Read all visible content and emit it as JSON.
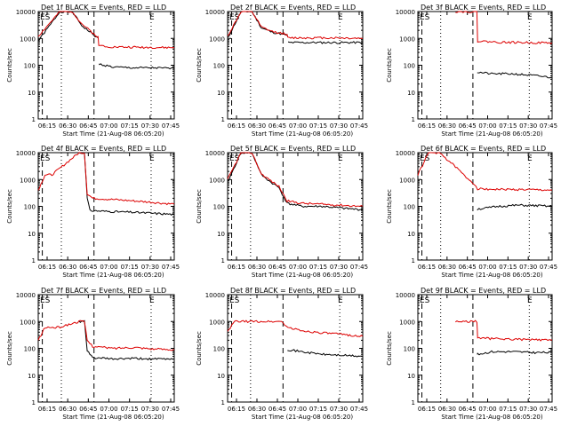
{
  "figure": {
    "xlabel": "Start Time (21-Aug-08 06:05:20)",
    "ylabel": "Counts/sec"
  },
  "chart_data": [
    {
      "type": "line",
      "title": "Det 1f BLACK = Events, RED = LLD",
      "x_ticks": [
        "06:15",
        "06:30",
        "06:45",
        "07:00",
        "07:15",
        "07:30",
        "07:45"
      ],
      "y_ticks": [
        "1",
        "10",
        "100",
        "1000",
        "10000"
      ],
      "ylim": [
        1,
        10000
      ],
      "yscale": "log",
      "markers": [
        "ES",
        "E"
      ],
      "series": [
        {
          "color": "#000000",
          "points": [
            [
              0,
              800
            ],
            [
              0.16,
              10000
            ],
            [
              0.25,
              10000
            ],
            [
              0.32,
              3000
            ],
            [
              0.44,
              1000
            ],
            [
              0.445,
              0
            ],
            [
              0.45,
              110
            ],
            [
              0.55,
              85
            ],
            [
              0.7,
              80
            ],
            [
              0.85,
              80
            ],
            [
              1,
              75
            ]
          ]
        },
        {
          "color": "#dd0000",
          "points": [
            [
              0,
              1200
            ],
            [
              0.16,
              10000
            ],
            [
              0.25,
              10000
            ],
            [
              0.32,
              3500
            ],
            [
              0.44,
              1100
            ],
            [
              0.445,
              550
            ],
            [
              0.55,
              480
            ],
            [
              0.7,
              470
            ],
            [
              0.85,
              460
            ],
            [
              1,
              450
            ]
          ]
        }
      ]
    },
    {
      "type": "line",
      "title": "Det 2f BLACK = Events, RED = LLD",
      "x_ticks": [
        "06:15",
        "06:30",
        "06:45",
        "07:00",
        "07:15",
        "07:30",
        "07:45"
      ],
      "y_ticks": [
        "1",
        "10",
        "100",
        "1000",
        "10000"
      ],
      "ylim": [
        1,
        10000
      ],
      "yscale": "log",
      "markers": [
        "ES",
        "E"
      ],
      "series": [
        {
          "color": "#000000",
          "points": [
            [
              0,
              1000
            ],
            [
              0.1,
              10000
            ],
            [
              0.18,
              10000
            ],
            [
              0.25,
              2500
            ],
            [
              0.33,
              1700
            ],
            [
              0.39,
              1500
            ],
            [
              0.44,
              1300
            ],
            [
              0.445,
              0
            ],
            [
              0.45,
              700
            ],
            [
              0.6,
              700
            ],
            [
              0.8,
              700
            ],
            [
              1,
              700
            ]
          ]
        },
        {
          "color": "#dd0000",
          "points": [
            [
              0,
              1200
            ],
            [
              0.1,
              10000
            ],
            [
              0.18,
              10000
            ],
            [
              0.25,
              2600
            ],
            [
              0.33,
              1800
            ],
            [
              0.39,
              1600
            ],
            [
              0.44,
              1400
            ],
            [
              0.445,
              1050
            ],
            [
              0.6,
              1050
            ],
            [
              0.8,
              1050
            ],
            [
              1,
              1000
            ]
          ]
        }
      ]
    },
    {
      "type": "line",
      "title": "Det 3f BLACK = Events, RED = LLD",
      "x_ticks": [
        "06:15",
        "06:30",
        "06:45",
        "07:00",
        "07:15",
        "07:30",
        "07:45"
      ],
      "y_ticks": [
        "1",
        "10",
        "100",
        "1000",
        "10000"
      ],
      "ylim": [
        1,
        10000
      ],
      "yscale": "log",
      "markers": [
        "ES",
        "E"
      ],
      "series": [
        {
          "color": "#000000",
          "points": [
            [
              0.44,
              0
            ],
            [
              0.445,
              55
            ],
            [
              0.55,
              48
            ],
            [
              0.7,
              48
            ],
            [
              0.85,
              42
            ],
            [
              1,
              35
            ]
          ]
        },
        {
          "color": "#dd0000",
          "points": [
            [
              0.28,
              10000
            ],
            [
              0.44,
              10000
            ],
            [
              0.445,
              800
            ],
            [
              0.6,
              720
            ],
            [
              0.8,
              700
            ],
            [
              1,
              680
            ]
          ]
        }
      ]
    },
    {
      "type": "line",
      "title": "Det 4f BLACK = Events, RED = LLD",
      "x_ticks": [
        "06:15",
        "06:30",
        "06:45",
        "07:00",
        "07:15",
        "07:30",
        "07:45"
      ],
      "y_ticks": [
        "1",
        "10",
        "100",
        "1000",
        "10000"
      ],
      "ylim": [
        1,
        10000
      ],
      "yscale": "log",
      "markers": [
        "ES",
        "E"
      ],
      "series": [
        {
          "color": "#000000",
          "points": [
            [
              0.3,
              10000
            ],
            [
              0.34,
              10000
            ],
            [
              0.36,
              200
            ],
            [
              0.38,
              70
            ],
            [
              0.5,
              65
            ],
            [
              0.7,
              60
            ],
            [
              0.85,
              55
            ],
            [
              1,
              50
            ]
          ]
        },
        {
          "color": "#dd0000",
          "points": [
            [
              0,
              400
            ],
            [
              0.05,
              1500
            ],
            [
              0.1,
              1500
            ],
            [
              0.3,
              10000
            ],
            [
              0.34,
              10000
            ],
            [
              0.36,
              300
            ],
            [
              0.4,
              200
            ],
            [
              0.55,
              180
            ],
            [
              0.7,
              160
            ],
            [
              0.85,
              140
            ],
            [
              1,
              120
            ]
          ]
        }
      ]
    },
    {
      "type": "line",
      "title": "Det 5f BLACK = Events, RED = LLD",
      "x_ticks": [
        "06:15",
        "06:30",
        "06:45",
        "07:00",
        "07:15",
        "07:30",
        "07:45"
      ],
      "y_ticks": [
        "1",
        "10",
        "100",
        "1000",
        "10000"
      ],
      "ylim": [
        1,
        10000
      ],
      "yscale": "log",
      "markers": [
        "ES",
        "E"
      ],
      "series": [
        {
          "color": "#000000",
          "points": [
            [
              0,
              800
            ],
            [
              0.1,
              10000
            ],
            [
              0.18,
              10000
            ],
            [
              0.25,
              1500
            ],
            [
              0.32,
              800
            ],
            [
              0.38,
              500
            ],
            [
              0.44,
              130
            ],
            [
              0.55,
              100
            ],
            [
              0.7,
              100
            ],
            [
              0.85,
              85
            ],
            [
              1,
              75
            ]
          ]
        },
        {
          "color": "#dd0000",
          "points": [
            [
              0,
              1000
            ],
            [
              0.1,
              10000
            ],
            [
              0.18,
              10000
            ],
            [
              0.25,
              1600
            ],
            [
              0.32,
              900
            ],
            [
              0.38,
              550
            ],
            [
              0.44,
              160
            ],
            [
              0.55,
              130
            ],
            [
              0.7,
              120
            ],
            [
              0.85,
              110
            ],
            [
              1,
              100
            ]
          ]
        }
      ]
    },
    {
      "type": "line",
      "title": "Det 6f BLACK = Events, RED = LLD",
      "x_ticks": [
        "06:15",
        "06:30",
        "06:45",
        "07:00",
        "07:15",
        "07:30",
        "07:45"
      ],
      "y_ticks": [
        "1",
        "10",
        "100",
        "1000",
        "10000"
      ],
      "ylim": [
        1,
        10000
      ],
      "yscale": "log",
      "markers": [
        "ES",
        "E"
      ],
      "series": [
        {
          "color": "#000000",
          "points": [
            [
              0.44,
              0
            ],
            [
              0.445,
              80
            ],
            [
              0.5,
              85
            ],
            [
              0.6,
              100
            ],
            [
              0.75,
              110
            ],
            [
              0.9,
              105
            ],
            [
              1,
              100
            ]
          ]
        },
        {
          "color": "#dd0000",
          "points": [
            [
              0,
              1500
            ],
            [
              0.08,
              10000
            ],
            [
              0.16,
              10000
            ],
            [
              0.28,
              3000
            ],
            [
              0.36,
              1200
            ],
            [
              0.42,
              700
            ],
            [
              0.445,
              450
            ],
            [
              0.6,
              430
            ],
            [
              0.8,
              420
            ],
            [
              1,
              400
            ]
          ]
        }
      ]
    },
    {
      "type": "line",
      "title": "Det 7f BLACK = Events, RED = LLD",
      "x_ticks": [
        "06:15",
        "06:30",
        "06:45",
        "07:00",
        "07:15",
        "07:30",
        "07:45"
      ],
      "y_ticks": [
        "1",
        "10",
        "100",
        "1000",
        "10000"
      ],
      "ylim": [
        1,
        10000
      ],
      "yscale": "log",
      "markers": [
        "ES",
        "E"
      ],
      "series": [
        {
          "color": "#000000",
          "points": [
            [
              0.3,
              1000
            ],
            [
              0.34,
              1000
            ],
            [
              0.36,
              80
            ],
            [
              0.4,
              45
            ],
            [
              0.55,
              40
            ],
            [
              0.7,
              42
            ],
            [
              0.85,
              40
            ],
            [
              1,
              40
            ]
          ]
        },
        {
          "color": "#dd0000",
          "points": [
            [
              0,
              200
            ],
            [
              0.05,
              600
            ],
            [
              0.15,
              600
            ],
            [
              0.3,
              1000
            ],
            [
              0.34,
              1000
            ],
            [
              0.36,
              200
            ],
            [
              0.4,
              120
            ],
            [
              0.55,
              100
            ],
            [
              0.7,
              110
            ],
            [
              0.85,
              95
            ],
            [
              1,
              90
            ]
          ]
        }
      ]
    },
    {
      "type": "line",
      "title": "Det 8f BLACK = Events, RED = LLD",
      "x_ticks": [
        "06:15",
        "06:30",
        "06:45",
        "07:00",
        "07:15",
        "07:30",
        "07:45"
      ],
      "y_ticks": [
        "1",
        "10",
        "100",
        "1000",
        "10000"
      ],
      "ylim": [
        1,
        10000
      ],
      "yscale": "log",
      "markers": [
        "ES",
        "E"
      ],
      "series": [
        {
          "color": "#000000",
          "points": [
            [
              0.44,
              0
            ],
            [
              0.445,
              90
            ],
            [
              0.55,
              75
            ],
            [
              0.7,
              60
            ],
            [
              0.85,
              55
            ],
            [
              1,
              50
            ]
          ]
        },
        {
          "color": "#dd0000",
          "points": [
            [
              0,
              400
            ],
            [
              0.05,
              1000
            ],
            [
              0.4,
              1000
            ],
            [
              0.445,
              600
            ],
            [
              0.55,
              450
            ],
            [
              0.7,
              380
            ],
            [
              0.85,
              330
            ],
            [
              1,
              280
            ]
          ]
        }
      ]
    },
    {
      "type": "line",
      "title": "Det 9f BLACK = Events, RED = LLD",
      "x_ticks": [
        "06:15",
        "06:30",
        "06:45",
        "07:00",
        "07:15",
        "07:30",
        "07:45"
      ],
      "y_ticks": [
        "1",
        "10",
        "100",
        "1000",
        "10000"
      ],
      "ylim": [
        1,
        10000
      ],
      "yscale": "log",
      "markers": [
        "ES",
        "E"
      ],
      "series": [
        {
          "color": "#000000",
          "points": [
            [
              0.44,
              0
            ],
            [
              0.445,
              60
            ],
            [
              0.55,
              75
            ],
            [
              0.7,
              75
            ],
            [
              0.85,
              70
            ],
            [
              1,
              70
            ]
          ]
        },
        {
          "color": "#dd0000",
          "points": [
            [
              0.28,
              1000
            ],
            [
              0.44,
              1000
            ],
            [
              0.445,
              250
            ],
            [
              0.55,
              230
            ],
            [
              0.7,
              220
            ],
            [
              0.85,
              210
            ],
            [
              1,
              200
            ]
          ]
        }
      ]
    }
  ]
}
